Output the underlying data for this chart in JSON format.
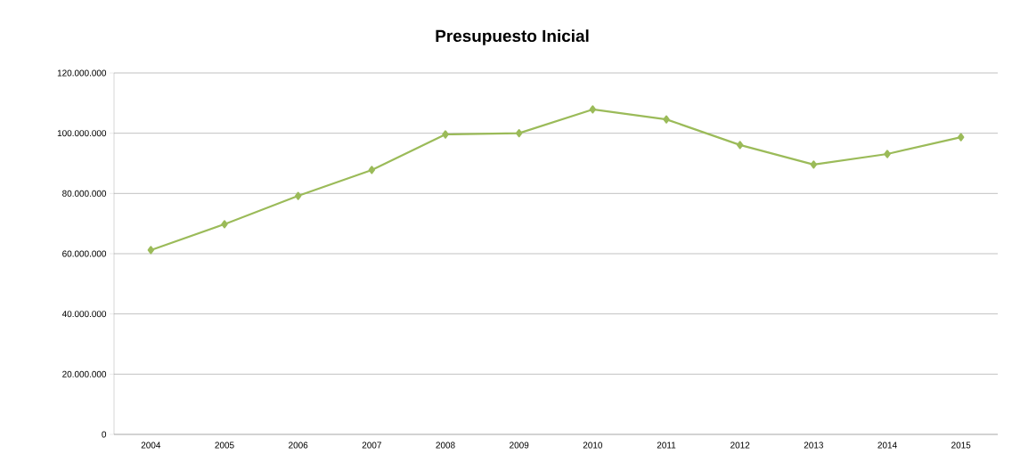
{
  "chart_data": {
    "type": "line",
    "title": "Presupuesto Inicial",
    "categories": [
      "2004",
      "2005",
      "2006",
      "2007",
      "2008",
      "2009",
      "2010",
      "2011",
      "2012",
      "2013",
      "2014",
      "2015"
    ],
    "series": [
      {
        "color": "#9bbb59",
        "values": [
          61200000,
          69800000,
          79200000,
          87800000,
          99600000,
          100000000,
          107900000,
          104600000,
          96100000,
          89600000,
          93100000,
          98700000
        ]
      }
    ],
    "ylim": [
      0,
      120000000
    ],
    "yticks": [
      {
        "value": 0,
        "label": "0"
      },
      {
        "value": 20000000,
        "label": "20.000.000"
      },
      {
        "value": 40000000,
        "label": "40.000.000"
      },
      {
        "value": 60000000,
        "label": "60.000.000"
      },
      {
        "value": 80000000,
        "label": "80.000.000"
      },
      {
        "value": 100000000,
        "label": "100.000.000"
      },
      {
        "value": 120000000,
        "label": "120.000.000"
      }
    ],
    "grid": "y",
    "marker": "diamond",
    "line_style": "solid"
  }
}
